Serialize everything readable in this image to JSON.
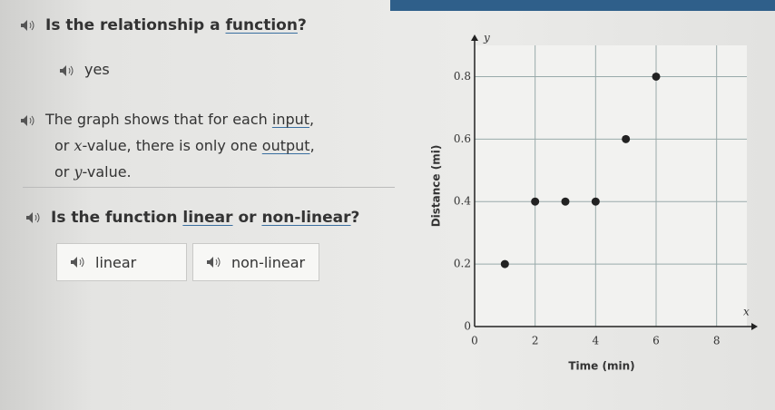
{
  "question1": {
    "parts": [
      "Is the relationship a ",
      "function",
      "?"
    ]
  },
  "answer": "yes",
  "explanation": {
    "lines": [
      [
        "The graph shows that for each ",
        "input",
        ","
      ],
      [
        "or ",
        "x",
        "-value, there is only one ",
        "output",
        ","
      ],
      [
        "or ",
        "y",
        "-value."
      ]
    ]
  },
  "question2": {
    "parts": [
      "Is the function ",
      "linear",
      " or ",
      "non-linear",
      "?"
    ]
  },
  "options": [
    "linear",
    "non-linear"
  ],
  "chart_data": {
    "type": "scatter",
    "x_label": "Time (min)",
    "y_label": "Distance (mi)",
    "x_axis_letter": "x",
    "y_axis_letter": "y",
    "x": [
      1,
      2,
      3,
      4,
      5,
      6
    ],
    "values": [
      0.2,
      0.4,
      0.4,
      0.4,
      0.6,
      0.8
    ],
    "color": "#222222",
    "xlim": [
      0,
      9
    ],
    "ylim": [
      0,
      0.9
    ],
    "xticks": [
      0,
      2,
      4,
      6,
      8
    ],
    "yticks": [
      0,
      0.2,
      0.4,
      0.6,
      0.8
    ],
    "grid": true
  }
}
